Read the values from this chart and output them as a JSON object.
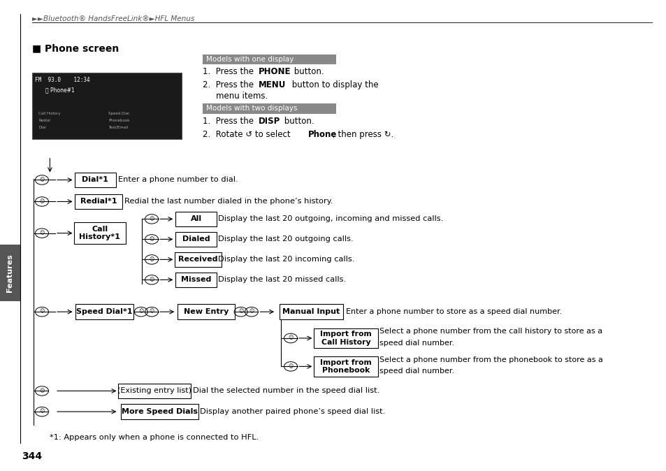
{
  "bg_color": "#ffffff",
  "page_number": "344",
  "breadcrumb": "►►Bluetooth® HandsFreeLink®►HFL Menus",
  "section_title": "■ Phone screen",
  "sidebar_label": "Features",
  "footnote": "*1: Appears only when a phone is connected to HFL.",
  "models_one_display_label": "Models with one display",
  "models_two_displays_label": "Models with two displays"
}
